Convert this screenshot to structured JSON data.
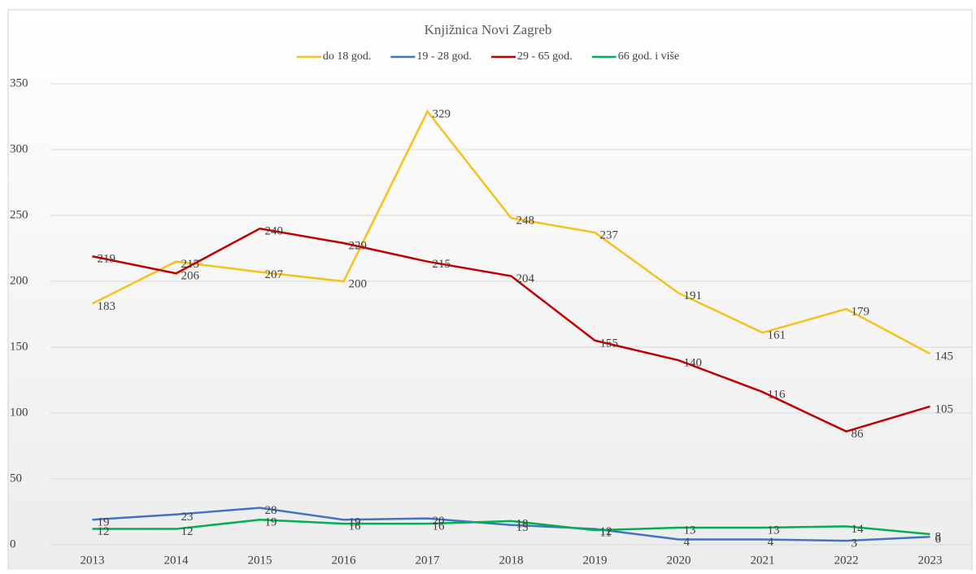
{
  "chart_data": {
    "type": "line",
    "title": "Knjižnica Novi Zagreb",
    "categories": [
      "2013",
      "2014",
      "2015",
      "2016",
      "2017",
      "2018",
      "2019",
      "2020",
      "2021",
      "2022",
      "2023"
    ],
    "series": [
      {
        "name": "do 18 god.",
        "color": "#f5c21b",
        "values": [
          183,
          215,
          207,
          200,
          329,
          248,
          237,
          191,
          161,
          179,
          145
        ]
      },
      {
        "name": "19 - 28 god.",
        "color": "#4472c4",
        "values": [
          19,
          23,
          28,
          19,
          20,
          15,
          12,
          4,
          4,
          3,
          6
        ]
      },
      {
        "name": "29 - 65 god.",
        "color": "#c00000",
        "values": [
          219,
          206,
          240,
          229,
          215,
          204,
          155,
          140,
          116,
          86,
          105
        ]
      },
      {
        "name": "66 god. i više",
        "color": "#00b050",
        "values": [
          12,
          12,
          19,
          16,
          16,
          18,
          11,
          13,
          13,
          14,
          8
        ]
      }
    ],
    "ylim": [
      0,
      350
    ],
    "yticks": [
      0,
      50,
      100,
      150,
      200,
      250,
      300,
      350
    ],
    "grid": true,
    "legend": "top"
  }
}
